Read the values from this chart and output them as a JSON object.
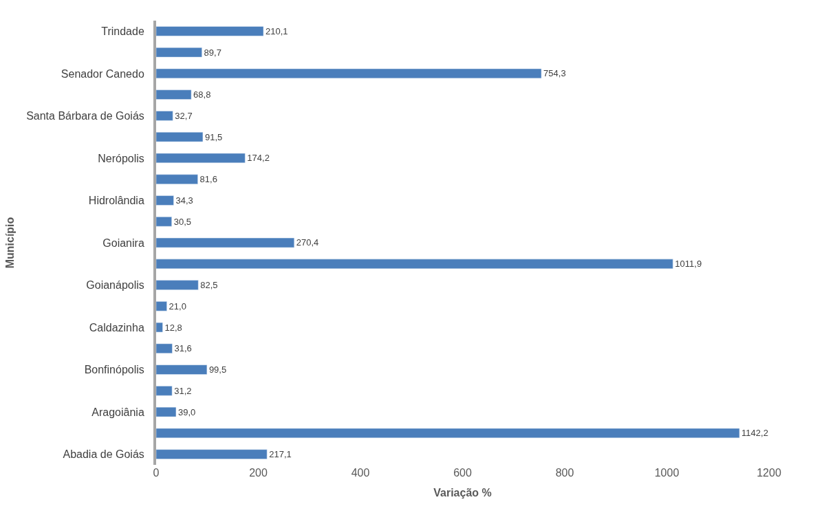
{
  "chart_data": {
    "type": "bar",
    "orientation": "horizontal",
    "xlabel": "Variação %",
    "ylabel": "Município",
    "categories": [
      "Trindade",
      null,
      "Senador Canedo",
      null,
      "Santa Bárbara de Goiás",
      null,
      "Nerópolis",
      null,
      "Hidrolândia",
      null,
      "Goianira",
      null,
      "Goianápolis",
      null,
      "Caldazinha",
      null,
      "Bonfinópolis",
      null,
      "Aragoiânia",
      null,
      "Abadia de Goiás"
    ],
    "values": [
      210.1,
      89.7,
      754.3,
      68.8,
      32.7,
      91.5,
      174.2,
      81.6,
      34.3,
      30.5,
      270.4,
      1011.9,
      82.5,
      21.0,
      12.8,
      31.6,
      99.5,
      31.2,
      39.0,
      1142.2,
      217.1
    ],
    "value_labels": [
      "210,1",
      "89,7",
      "754,3",
      "68,8",
      "32,7",
      "91,5",
      "174,2",
      "81,6",
      "34,3",
      "30,5",
      "270,4",
      "1011,9",
      "82,5",
      "21,0",
      "12,8",
      "31,6",
      "99,5",
      "31,2",
      "39,0",
      "1142,2",
      "217,1"
    ],
    "color": "#4a7ebb",
    "xlim": [
      0,
      1200
    ],
    "xticks": [
      0,
      200,
      400,
      600,
      800,
      1000,
      1200
    ]
  }
}
